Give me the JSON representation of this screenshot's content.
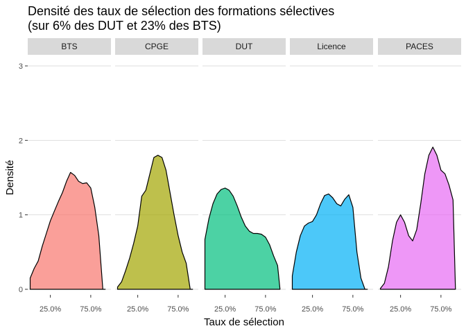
{
  "chart_data": {
    "type": "area",
    "title_line1": "Densité des taux de sélection des formations sélectives",
    "title_line2": "(sur 6% des DUT et 23% des BTS)",
    "xlabel": "Taux de sélection",
    "ylabel": "Densité",
    "ylim": [
      0,
      3
    ],
    "y_ticks": [
      "0",
      "1",
      "2",
      "3"
    ],
    "x_ticks": [
      "25.0%",
      "75.0%"
    ],
    "x_tick_values": [
      0.25,
      0.75
    ],
    "grid": true,
    "panels": [
      {
        "name": "BTS",
        "color": "#F8766D",
        "x": [
          0.0,
          0.05,
          0.1,
          0.15,
          0.2,
          0.25,
          0.3,
          0.35,
          0.4,
          0.45,
          0.5,
          0.55,
          0.6,
          0.65,
          0.7,
          0.75,
          0.8,
          0.85,
          0.9,
          0.93
        ],
        "y": [
          0.15,
          0.28,
          0.38,
          0.58,
          0.75,
          0.92,
          1.05,
          1.18,
          1.3,
          1.45,
          1.57,
          1.53,
          1.45,
          1.42,
          1.43,
          1.36,
          1.1,
          0.72,
          0.0,
          0.0
        ]
      },
      {
        "name": "CPGE",
        "color": "#A3A500",
        "x": [
          0.0,
          0.05,
          0.1,
          0.15,
          0.2,
          0.25,
          0.3,
          0.35,
          0.4,
          0.45,
          0.5,
          0.55,
          0.6,
          0.65,
          0.7,
          0.75,
          0.8,
          0.85,
          0.9,
          0.93
        ],
        "y": [
          0.03,
          0.1,
          0.25,
          0.42,
          0.62,
          0.85,
          1.25,
          1.33,
          1.55,
          1.77,
          1.8,
          1.77,
          1.6,
          1.3,
          1.0,
          0.72,
          0.5,
          0.35,
          0.0,
          0.0
        ]
      },
      {
        "name": "DUT",
        "color": "#00BF7D",
        "x": [
          0.0,
          0.05,
          0.1,
          0.15,
          0.2,
          0.25,
          0.3,
          0.35,
          0.4,
          0.45,
          0.5,
          0.55,
          0.6,
          0.65,
          0.7,
          0.75,
          0.8,
          0.85,
          0.9,
          0.93
        ],
        "y": [
          0.67,
          0.95,
          1.15,
          1.28,
          1.34,
          1.36,
          1.33,
          1.25,
          1.12,
          0.97,
          0.85,
          0.78,
          0.75,
          0.75,
          0.74,
          0.7,
          0.6,
          0.45,
          0.32,
          0.0
        ]
      },
      {
        "name": "Licence",
        "color": "#00B0F6",
        "x": [
          0.0,
          0.05,
          0.1,
          0.15,
          0.2,
          0.25,
          0.3,
          0.35,
          0.4,
          0.45,
          0.5,
          0.55,
          0.6,
          0.65,
          0.7,
          0.75,
          0.8,
          0.85,
          0.9,
          0.93
        ],
        "y": [
          0.18,
          0.5,
          0.72,
          0.85,
          0.89,
          0.91,
          1.0,
          1.15,
          1.26,
          1.28,
          1.23,
          1.15,
          1.12,
          1.21,
          1.27,
          1.1,
          0.5,
          0.15,
          0.0,
          0.0
        ]
      },
      {
        "name": "PACES",
        "color": "#E76BF3",
        "x": [
          0.0,
          0.05,
          0.1,
          0.15,
          0.2,
          0.25,
          0.3,
          0.35,
          0.4,
          0.45,
          0.5,
          0.55,
          0.6,
          0.65,
          0.7,
          0.75,
          0.8,
          0.85,
          0.9,
          0.93
        ],
        "y": [
          0.01,
          0.08,
          0.3,
          0.65,
          0.9,
          1.0,
          0.9,
          0.72,
          0.65,
          0.8,
          1.15,
          1.55,
          1.8,
          1.91,
          1.8,
          1.6,
          1.55,
          1.4,
          1.2,
          0.0
        ]
      }
    ]
  }
}
